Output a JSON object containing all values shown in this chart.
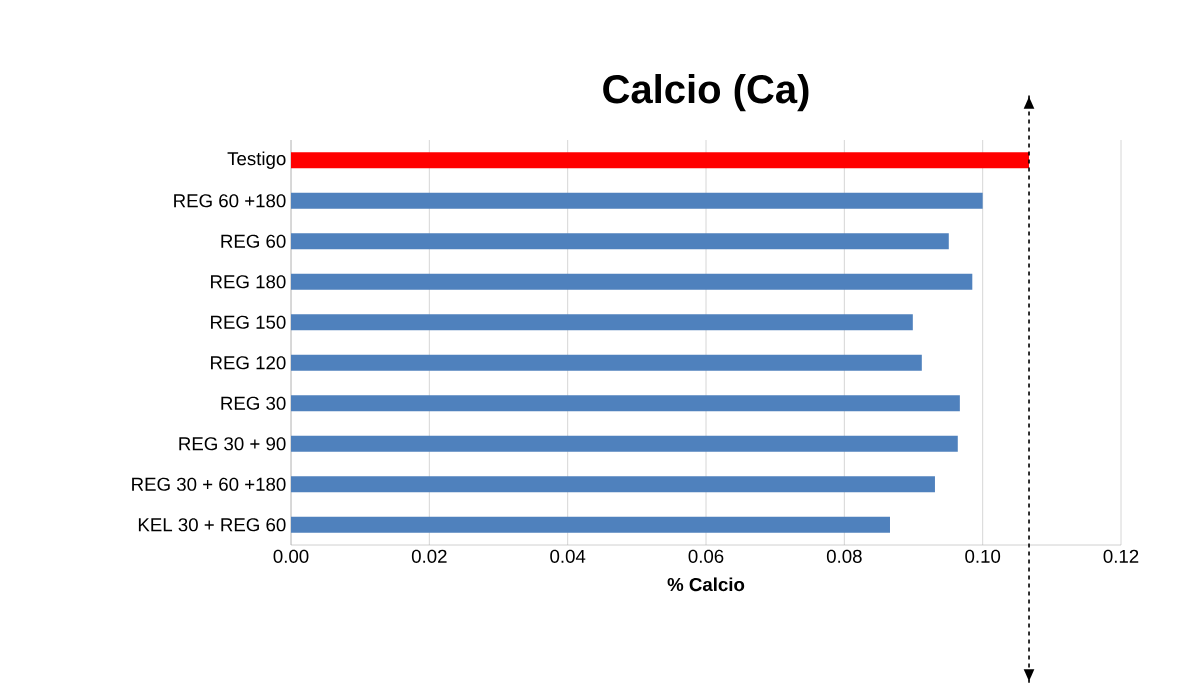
{
  "chart_data": {
    "type": "bar",
    "orientation": "horizontal",
    "title": "Calcio (Ca)",
    "xlabel": "% Calcio",
    "categories": [
      "Testigo",
      "REG 60 +180",
      "REG 60",
      "REG 180",
      "REG 150",
      "REG 120",
      "REG 30",
      "REG 30 + 90",
      "REG 30 + 60 +180",
      "KEL 30 + REG 60"
    ],
    "values": [
      0.1067,
      0.1,
      0.0951,
      0.0985,
      0.0899,
      0.0912,
      0.0967,
      0.0964,
      0.0931,
      0.0866
    ],
    "colors": [
      "#ff0000",
      "#4f81bd",
      "#4f81bd",
      "#4f81bd",
      "#4f81bd",
      "#4f81bd",
      "#4f81bd",
      "#4f81bd",
      "#4f81bd",
      "#4f81bd"
    ],
    "xlim": [
      0,
      0.12
    ],
    "xticks": [
      {
        "value": 0,
        "label": "0.00"
      },
      {
        "value": 0.02,
        "label": "0.02"
      },
      {
        "value": 0.04,
        "label": "0.04"
      },
      {
        "value": 0.06,
        "label": "0.06"
      },
      {
        "value": 0.08,
        "label": "0.08"
      },
      {
        "value": 0.1,
        "label": "0.10"
      },
      {
        "value": 0.12,
        "label": "0.12"
      }
    ],
    "grid": "x",
    "ref_lines": [
      {
        "axis": "x",
        "value": 0.1067,
        "color": "#000000",
        "line_style": "dashed"
      }
    ]
  }
}
